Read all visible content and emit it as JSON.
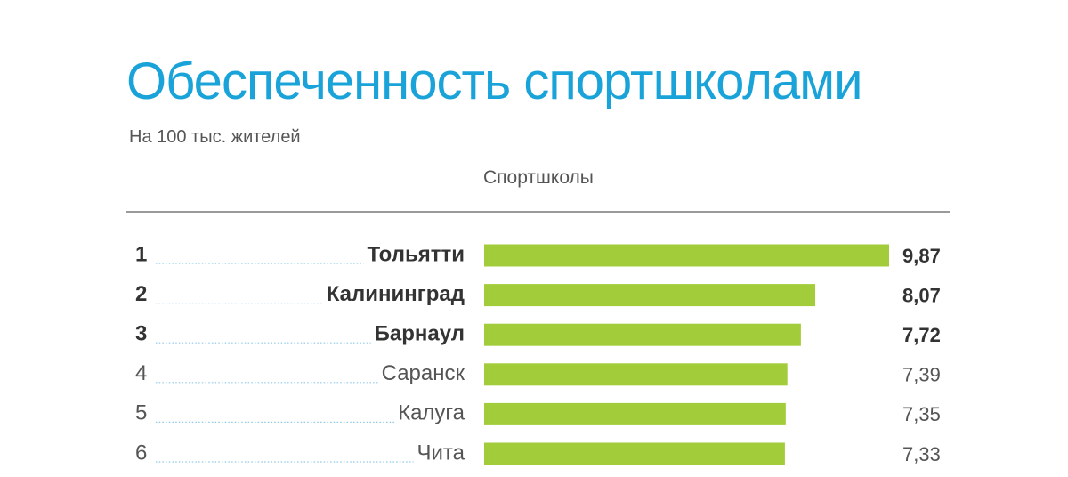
{
  "chart_data": {
    "type": "bar",
    "orientation": "horizontal",
    "title": "Обеспеченность спортшколами",
    "subtitle": "На 100 тыс. жителей",
    "column_header": "Спортшколы",
    "ranks": [
      "1",
      "2",
      "3",
      "4",
      "5",
      "6"
    ],
    "categories": [
      "Тольятти",
      "Калининград",
      "Барнаул",
      "Саранск",
      "Калуга",
      "Чита"
    ],
    "values": [
      9.87,
      8.07,
      7.72,
      7.39,
      7.35,
      7.33
    ],
    "value_labels": [
      "9,87",
      "8,07",
      "7,72",
      "7,39",
      "7,35",
      "7,33"
    ],
    "highlight_top": 3,
    "xlim": [
      0,
      9.87
    ],
    "grid": false,
    "legend": "none"
  },
  "colors": {
    "title": "#1aa3d9",
    "bar": "#a2cc3a",
    "leader": "#8fc9e6",
    "text_bold": "#333333",
    "text_normal": "#555555"
  }
}
